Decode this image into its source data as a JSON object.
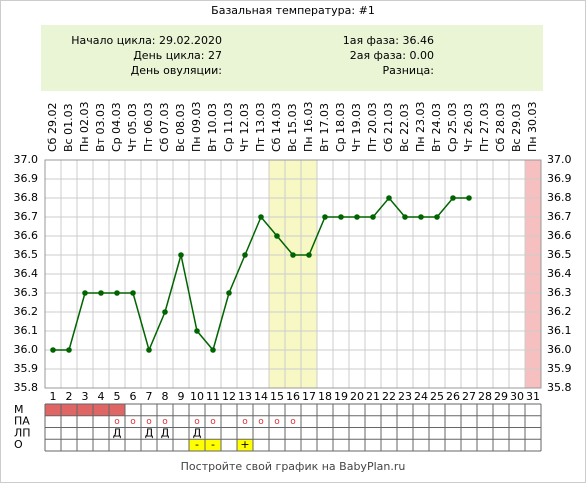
{
  "chart_data": {
    "type": "line",
    "title": "Базальная температура: #1",
    "info_left": [
      "Начало цикла: 29.02.2020",
      "День цикла: 27",
      "День овуляции:"
    ],
    "info_right": [
      "1ая фаза: 36.46",
      "2ая фаза: 0.00",
      "Разница:"
    ],
    "categories": [
      "1",
      "2",
      "3",
      "4",
      "5",
      "6",
      "7",
      "8",
      "9",
      "10",
      "11",
      "12",
      "13",
      "14",
      "15",
      "16",
      "17",
      "18",
      "19",
      "20",
      "21",
      "22",
      "23",
      "24",
      "25",
      "26",
      "27",
      "28",
      "29",
      "30",
      "31"
    ],
    "dates": [
      "Сб 29.02",
      "Вс 01.03",
      "Пн 02.03",
      "Вт 03.03",
      "Ср 04.03",
      "Чт 05.03",
      "Пт 06.03",
      "Сб 07.03",
      "Вс 08.03",
      "Пн 09.03",
      "Вт 10.03",
      "Ср 11.03",
      "Чт 12.03",
      "Пт 13.03",
      "Сб 14.03",
      "Вс 15.03",
      "Пн 16.03",
      "Вт 17.03",
      "Ср 18.03",
      "Чт 19.03",
      "Пт 20.03",
      "Сб 21.03",
      "Вс 22.03",
      "Пн 23.03",
      "Вт 24.03",
      "Ср 25.03",
      "Чт 26.03",
      "Пт 27.03",
      "Сб 28.03",
      "Вс 29.03",
      "Пн 30.03"
    ],
    "series": [
      {
        "color": "#006400",
        "values": [
          36.0,
          36.0,
          36.3,
          36.3,
          36.3,
          36.3,
          36.0,
          36.2,
          36.5,
          36.1,
          36.0,
          36.3,
          36.5,
          36.7,
          36.6,
          36.5,
          36.5,
          36.7,
          36.7,
          36.7,
          36.7,
          36.8,
          36.7,
          36.7,
          36.7,
          36.8,
          36.8,
          null,
          null,
          null,
          null
        ]
      }
    ],
    "ylim": [
      35.8,
      37.0
    ],
    "yticks": [
      35.8,
      35.9,
      {
        "value": 36.0,
        "label": "36.0"
      },
      36.1,
      36.2,
      36.3,
      36.4,
      36.5,
      36.6,
      36.7,
      36.8,
      36.9,
      {
        "value": 37.0,
        "label": "37.0"
      }
    ],
    "grid": true,
    "fertile_days": [
      15,
      16,
      17
    ],
    "marked_days": [
      31
    ],
    "rows": [
      {
        "label": "М",
        "color": "#e06666",
        "days": [
          1,
          2,
          3,
          4,
          5
        ]
      },
      {
        "label": "ПА",
        "symbol": "o",
        "days": [
          5,
          6,
          7,
          8,
          10,
          11,
          13,
          14,
          15,
          16
        ]
      },
      {
        "label": "ЛП",
        "symbol": "Д",
        "days": [
          5,
          7,
          8,
          10
        ]
      },
      {
        "label": "О",
        "color": "#ffff00",
        "cells": [
          {
            "day": 10,
            "text": "-"
          },
          {
            "day": 11,
            "text": "-"
          },
          {
            "day": 13,
            "text": "+"
          }
        ]
      }
    ],
    "footer": "Постройте свой график на BabyPlan.ru"
  }
}
